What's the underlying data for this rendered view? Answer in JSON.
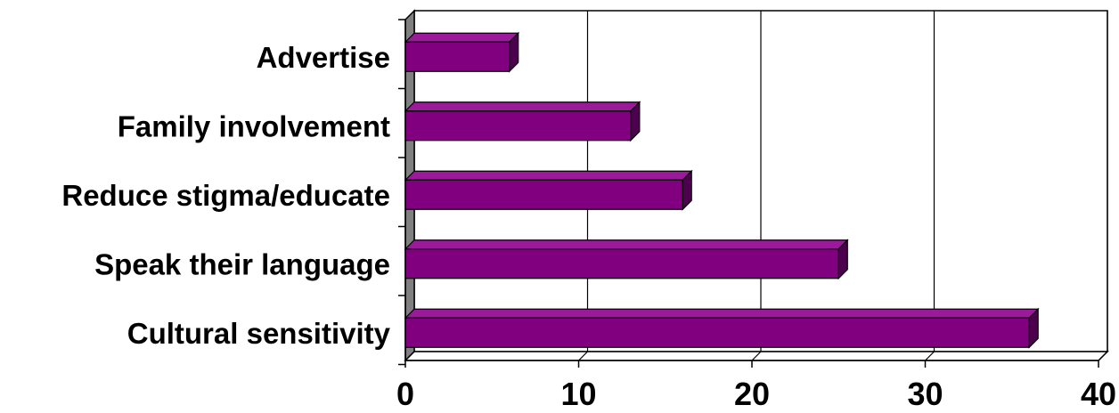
{
  "chart_data": {
    "type": "bar",
    "orientation": "horizontal",
    "style": "3d",
    "categories": [
      "Advertise",
      "Family involvement",
      "Reduce stigma/educate",
      "Speak their language",
      "Cultural sensitivity"
    ],
    "values": [
      6,
      13,
      16,
      25,
      36
    ],
    "xlim": [
      0,
      40
    ],
    "xticks": [
      "0",
      "10",
      "20",
      "30",
      "40"
    ],
    "title": "",
    "xlabel": "",
    "ylabel": "",
    "grid": "vertical",
    "legend": "none",
    "colors": {
      "bar_front": "#800080",
      "bar_top": "#9a1a9a",
      "bar_side": "#4d004d",
      "wall": "#ffffff",
      "side_wall": "#808080"
    }
  }
}
